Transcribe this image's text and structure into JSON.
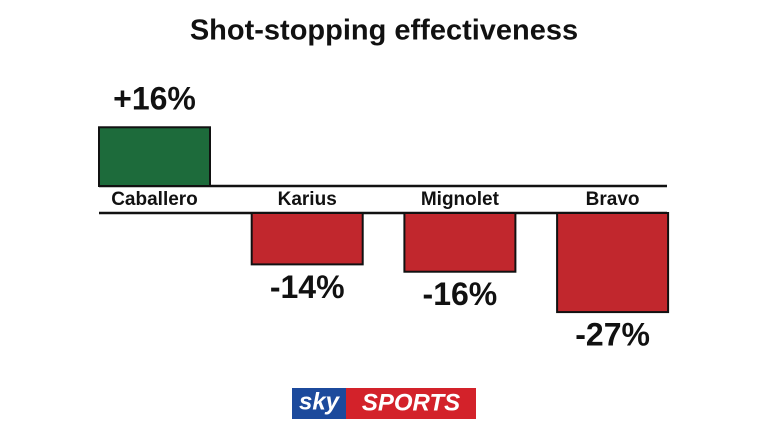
{
  "chart_data": {
    "type": "bar",
    "title": "Shot-stopping effectiveness",
    "categories": [
      "Caballero",
      "Karius",
      "Mignolet",
      "Bravo"
    ],
    "values": [
      16,
      -14,
      -16,
      -27
    ],
    "value_labels": [
      "+16%",
      "-14%",
      "-16%",
      "-27%"
    ],
    "colors": [
      "#1d6b3b",
      "#c1272d",
      "#c1272d",
      "#c1272d"
    ]
  },
  "logo": {
    "sky": "sky",
    "sports": "SPORTS"
  }
}
